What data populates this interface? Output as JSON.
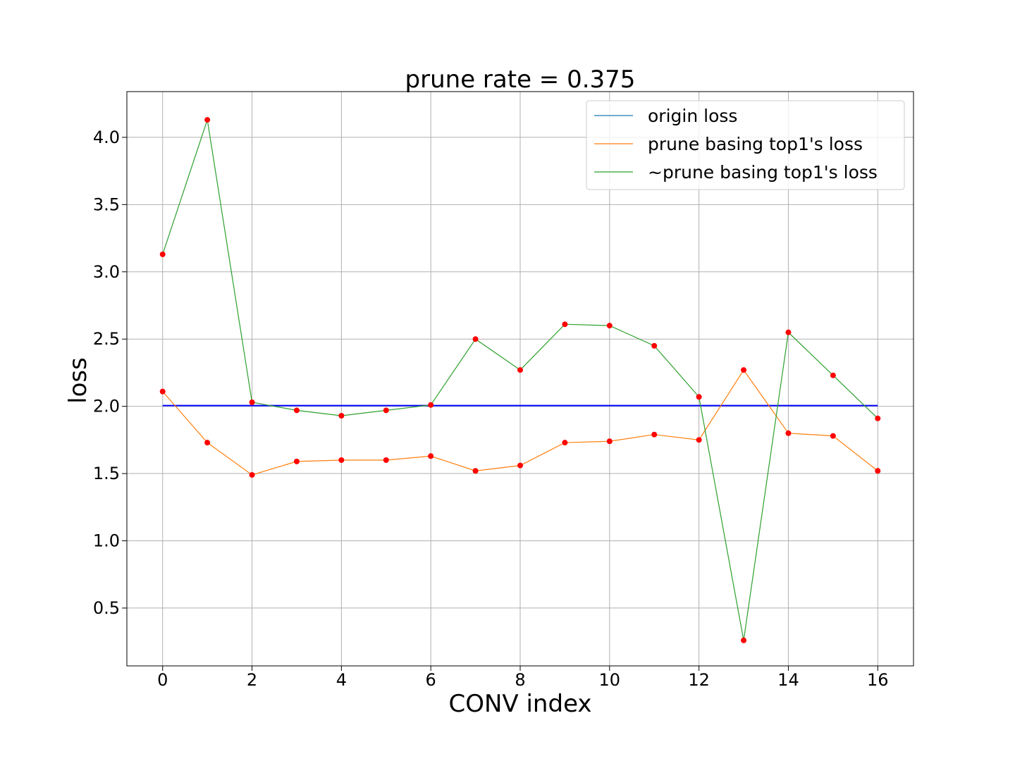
{
  "chart_data": {
    "type": "line",
    "title": "prune rate = 0.375",
    "xlabel": "CONV index",
    "ylabel": "loss",
    "xlim": [
      -0.8,
      16.8
    ],
    "ylim": [
      0.07,
      4.34
    ],
    "xticks": [
      0,
      2,
      4,
      6,
      8,
      10,
      12,
      14,
      16
    ],
    "yticks": [
      0.5,
      1.0,
      1.5,
      2.0,
      2.5,
      3.0,
      3.5,
      4.0
    ],
    "ytick_labels": [
      "0.5",
      "1.0",
      "1.5",
      "2.0",
      "2.5",
      "3.0",
      "3.5",
      "4.0"
    ],
    "grid": true,
    "legend_position": "top-right",
    "x": [
      0,
      1,
      2,
      3,
      4,
      5,
      6,
      7,
      8,
      9,
      10,
      11,
      12,
      13,
      14,
      15,
      16
    ],
    "series": [
      {
        "name": "origin loss",
        "color": "#1f77b4",
        "line_color_drawn": "#0000ff",
        "values": [
          2.005,
          2.005,
          2.005,
          2.005,
          2.005,
          2.005,
          2.005,
          2.005,
          2.005,
          2.005,
          2.005,
          2.005,
          2.005,
          2.005,
          2.005,
          2.005,
          2.005
        ]
      },
      {
        "name": "prune basing top1's loss",
        "color": "#ff7f0e",
        "values": [
          2.11,
          1.73,
          1.49,
          1.59,
          1.6,
          1.6,
          1.63,
          1.52,
          1.56,
          1.73,
          1.74,
          1.79,
          1.75,
          2.27,
          1.8,
          1.78,
          1.52
        ]
      },
      {
        "name": "~prune basing top1's loss",
        "color": "#2ca02c",
        "values": [
          3.13,
          4.13,
          2.03,
          1.97,
          1.93,
          1.97,
          2.01,
          2.5,
          2.27,
          2.61,
          2.6,
          2.45,
          2.07,
          0.26,
          2.55,
          2.23,
          1.91
        ]
      }
    ],
    "marker_color": "#ff0000"
  }
}
